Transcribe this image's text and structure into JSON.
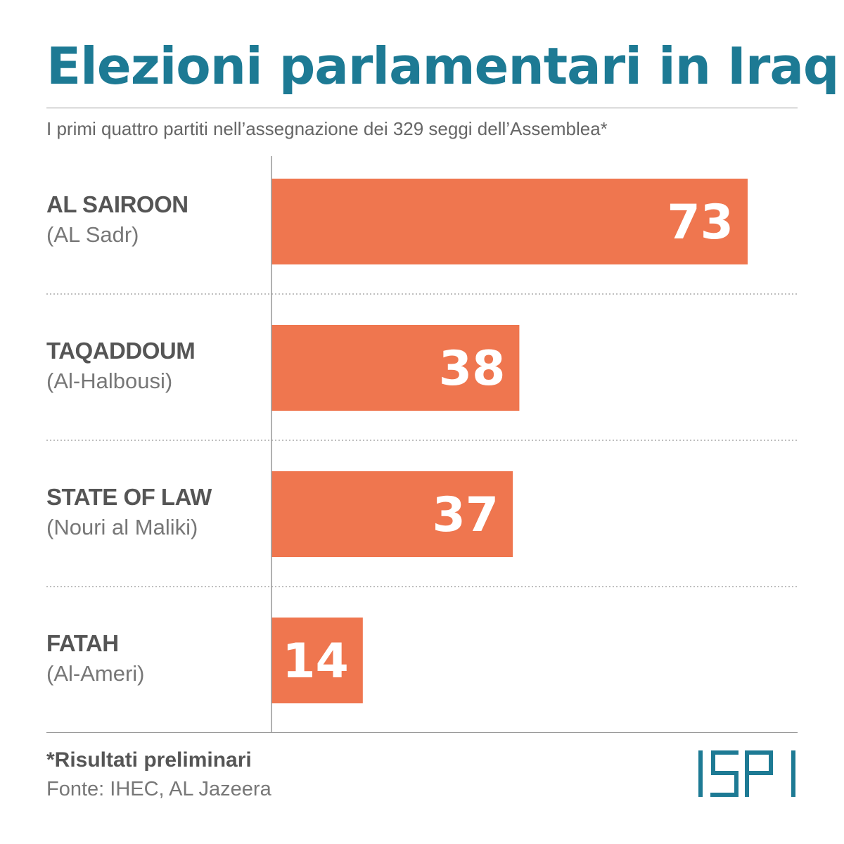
{
  "colors": {
    "title": "#1d7a94",
    "bar": "#ef764f",
    "bar_label": "#ffffff",
    "party": "#555555",
    "leader": "#777777",
    "divider": "#aaaaaa",
    "axis": "#999999",
    "logo": "#1d7a94"
  },
  "header": {
    "title": "Elezioni parlamentari in Iraq",
    "subtitle": "I primi quattro partiti nell’assegnazione dei 329 seggi dell’Assemblea*"
  },
  "chart_data": {
    "type": "bar",
    "orientation": "horizontal",
    "categories": [
      "AL SAIROON",
      "TAQADDOUM",
      "STATE OF LAW",
      "FATAH"
    ],
    "sublabels": [
      "(AL Sadr)",
      "(Al-Halbousi)",
      "(Nouri al Maliki)",
      "(Al-Ameri)"
    ],
    "values": [
      73,
      38,
      37,
      14
    ],
    "xlim": [
      0,
      80
    ],
    "grid": false,
    "legend": "none",
    "data_labels": true
  },
  "footer": {
    "note": "*Risultati preliminari",
    "source": "Fonte: IHEC, AL Jazeera",
    "logo_text": "ISPI"
  }
}
